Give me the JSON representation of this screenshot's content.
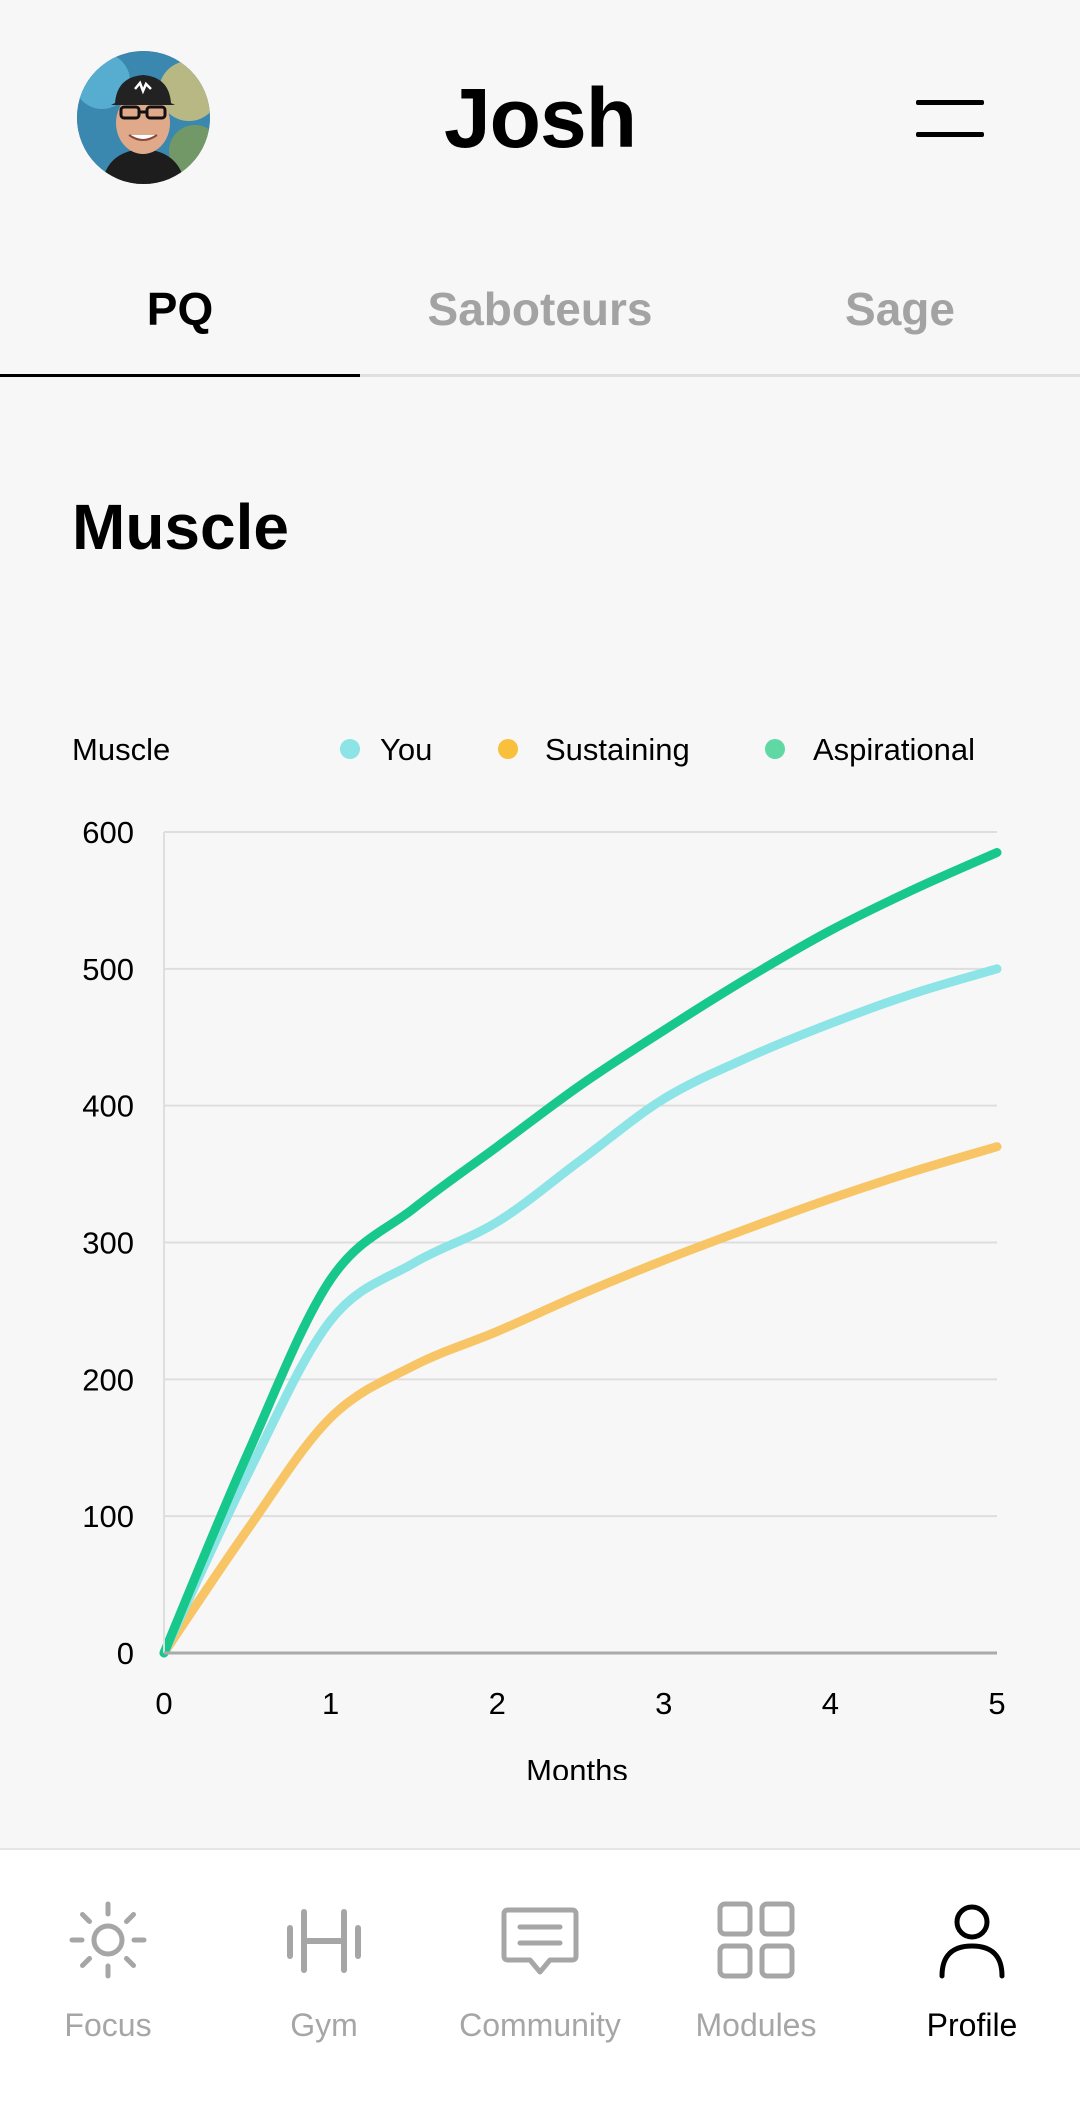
{
  "header": {
    "title": "Josh",
    "avatar_icon": "avatar-photo",
    "menu_icon": "hamburger-menu-icon"
  },
  "tabs": [
    {
      "label": "PQ",
      "active": true
    },
    {
      "label": "Saboteurs",
      "active": false
    },
    {
      "label": "Sage",
      "active": false
    }
  ],
  "section": {
    "title": "Muscle"
  },
  "chart_data": {
    "type": "line",
    "ylabel": "Muscle",
    "xlabel": "Months",
    "x": [
      0,
      0.5,
      1,
      1.5,
      2,
      2.5,
      3,
      3.5,
      4,
      4.5,
      5
    ],
    "xticks": [
      "0",
      "1",
      "2",
      "3",
      "4",
      "5"
    ],
    "yticks": [
      "0",
      "100",
      "200",
      "300",
      "400",
      "500",
      "600"
    ],
    "xlim": [
      0,
      5
    ],
    "ylim": [
      0,
      600
    ],
    "grid": true,
    "legend_position": "top",
    "series": [
      {
        "name": "You",
        "color": "#8ce4e6",
        "values": [
          0,
          130,
          243,
          285,
          315,
          360,
          405,
          435,
          460,
          482,
          500
        ]
      },
      {
        "name": "Sustaining",
        "color": "#f8c566",
        "values": [
          0,
          90,
          172,
          210,
          235,
          262,
          287,
          310,
          332,
          352,
          370
        ]
      },
      {
        "name": "Aspirational",
        "color": "#18c78c",
        "values": [
          0,
          145,
          273,
          325,
          370,
          415,
          455,
          493,
          528,
          558,
          585
        ]
      }
    ],
    "legend_dot_colors": [
      "#8ce4e6",
      "#f9c03c",
      "#5fd8a3"
    ]
  },
  "bottom_nav": [
    {
      "label": "Focus",
      "icon": "sun-icon",
      "active": false
    },
    {
      "label": "Gym",
      "icon": "barbell-icon",
      "active": false
    },
    {
      "label": "Community",
      "icon": "chat-bubble-icon",
      "active": false
    },
    {
      "label": "Modules",
      "icon": "grid-icon",
      "active": false
    },
    {
      "label": "Profile",
      "icon": "person-icon",
      "active": true
    }
  ]
}
